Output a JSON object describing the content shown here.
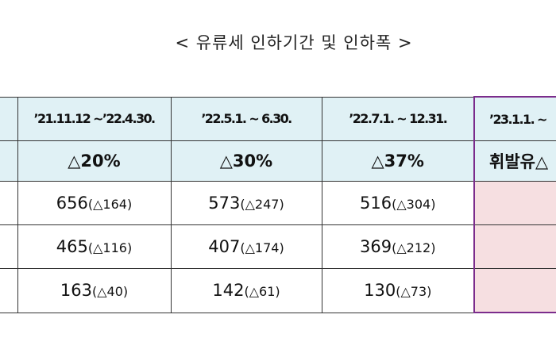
{
  "title": "< 유류세 인하기간 및 인하폭 >",
  "table": {
    "periods": [
      "’21.11.12 ~’22.4.30.",
      "’22.5.1. ~ 6.30.",
      "’22.7.1. ~ 12.31.",
      "’23.1.1. ~"
    ],
    "rates": [
      "△20%",
      "△30%",
      "△37%",
      "휘발유△"
    ],
    "rows": [
      [
        {
          "value": "656",
          "change": "(△164)"
        },
        {
          "value": "573",
          "change": "(△247)"
        },
        {
          "value": "516",
          "change": "(△304)"
        }
      ],
      [
        {
          "value": "465",
          "change": "(△116)"
        },
        {
          "value": "407",
          "change": "(△174)"
        },
        {
          "value": "369",
          "change": "(△212)"
        }
      ],
      [
        {
          "value": "163",
          "change": "(△40)"
        },
        {
          "value": "142",
          "change": "(△61)"
        },
        {
          "value": "130",
          "change": "(△73)"
        }
      ]
    ]
  }
}
